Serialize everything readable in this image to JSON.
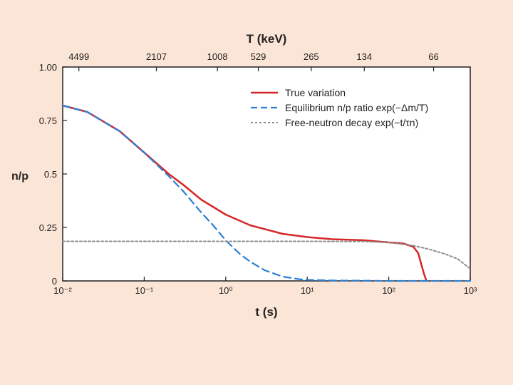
{
  "chart_data": {
    "type": "line",
    "x_scale": "log",
    "xlim": [
      0.01,
      1000
    ],
    "ylim": [
      0,
      1.0
    ],
    "xlabel": "t (s)",
    "ylabel": "n/p",
    "top_axis_label": "T (keV)",
    "top_ticks": [
      {
        "x": 0.0158,
        "label": "4499"
      },
      {
        "x": 0.141,
        "label": "2107"
      },
      {
        "x": 0.79,
        "label": "1008"
      },
      {
        "x": 2.51,
        "label": "529"
      },
      {
        "x": 11.2,
        "label": "265"
      },
      {
        "x": 50.1,
        "label": "134"
      },
      {
        "x": 355,
        "label": "66"
      }
    ],
    "x_ticks": [
      {
        "x": 0.01,
        "label": "10⁻²"
      },
      {
        "x": 0.1,
        "label": "10⁻¹"
      },
      {
        "x": 1,
        "label": "10⁰"
      },
      {
        "x": 10,
        "label": "10¹"
      },
      {
        "x": 100,
        "label": "10²"
      },
      {
        "x": 1000,
        "label": "10³"
      }
    ],
    "y_ticks": [
      {
        "y": 0,
        "label": "0"
      },
      {
        "y": 0.25,
        "label": "0.25"
      },
      {
        "y": 0.5,
        "label": "0.5"
      },
      {
        "y": 0.75,
        "label": "0.75"
      },
      {
        "y": 1.0,
        "label": "1.00"
      }
    ],
    "series": [
      {
        "name": "True variation",
        "color": "#d62728",
        "style": "solid",
        "x": [
          0.01,
          0.02,
          0.05,
          0.1,
          0.2,
          0.3,
          0.5,
          1,
          2,
          5,
          10,
          20,
          50,
          100,
          150,
          200,
          230,
          250,
          270,
          290
        ],
        "y": [
          0.82,
          0.79,
          0.7,
          0.6,
          0.5,
          0.45,
          0.38,
          0.31,
          0.26,
          0.22,
          0.205,
          0.195,
          0.19,
          0.18,
          0.175,
          0.16,
          0.13,
          0.08,
          0.035,
          0.0
        ]
      },
      {
        "name": "Equilibrium n/p ratio exp(−Δm/T)",
        "color": "#2a7fd4",
        "style": "dashed",
        "x": [
          0.01,
          0.02,
          0.05,
          0.1,
          0.2,
          0.3,
          0.5,
          0.7,
          1,
          1.5,
          2,
          3,
          5,
          8,
          10,
          20,
          50,
          100,
          1000
        ],
        "y": [
          0.82,
          0.79,
          0.7,
          0.6,
          0.49,
          0.42,
          0.32,
          0.26,
          0.19,
          0.125,
          0.09,
          0.05,
          0.02,
          0.008,
          0.005,
          0.002,
          0.001,
          0.0,
          0.0
        ]
      },
      {
        "name": "Free-neutron decay exp(−t/τn)",
        "color": "#8c8c8c",
        "style": "dotted",
        "x": [
          0.01,
          0.1,
          1,
          10,
          50,
          100,
          200,
          300,
          500,
          700,
          1000
        ],
        "y": [
          0.185,
          0.185,
          0.185,
          0.185,
          0.184,
          0.18,
          0.165,
          0.15,
          0.125,
          0.103,
          0.057
        ]
      }
    ],
    "legend_position": "top-right"
  }
}
